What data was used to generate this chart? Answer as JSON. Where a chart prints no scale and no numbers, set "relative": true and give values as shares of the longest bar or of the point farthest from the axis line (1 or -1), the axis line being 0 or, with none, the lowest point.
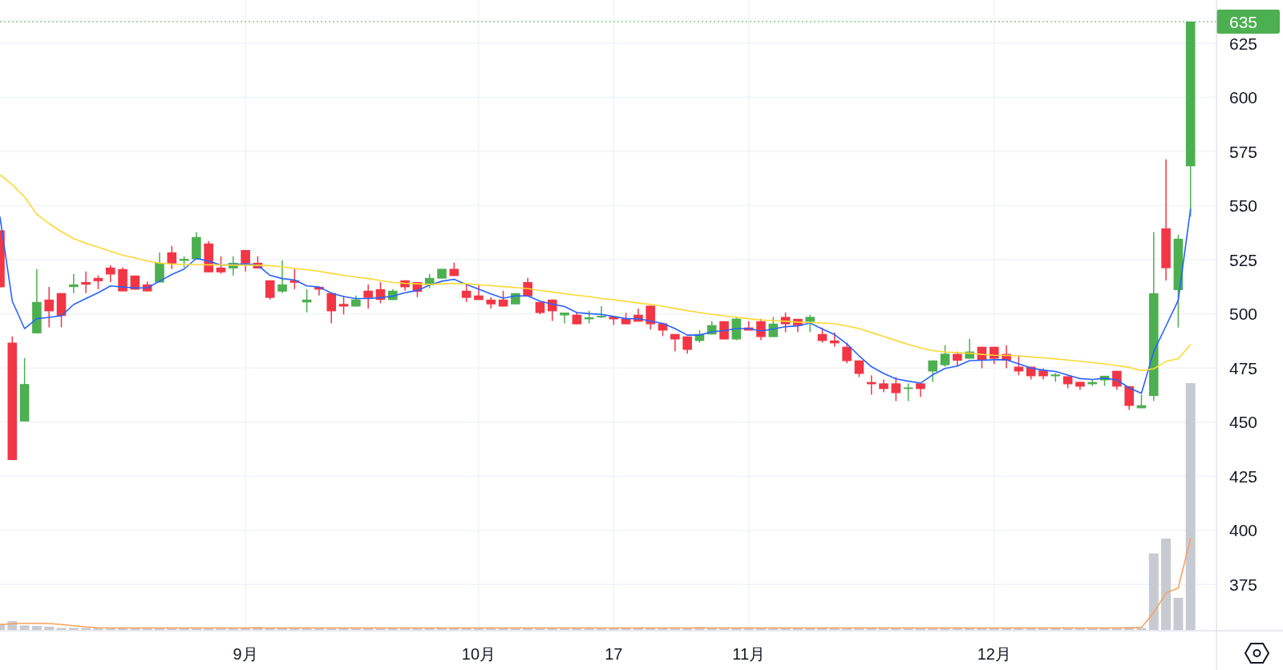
{
  "chart_data": [
    {
      "type": "candlestick",
      "categories": [
        null,
        null,
        null,
        null,
        null,
        null,
        null,
        null,
        null,
        null,
        null,
        null,
        null,
        null,
        null,
        null,
        null,
        null,
        null,
        null,
        "9月",
        null,
        null,
        null,
        null,
        null,
        null,
        null,
        null,
        null,
        null,
        null,
        null,
        null,
        null,
        null,
        null,
        null,
        null,
        "10月",
        null,
        null,
        null,
        null,
        null,
        null,
        null,
        null,
        null,
        null,
        "17",
        null,
        null,
        null,
        null,
        null,
        null,
        null,
        null,
        null,
        null,
        "11月",
        null,
        null,
        null,
        null,
        null,
        null,
        null,
        null,
        null,
        null,
        null,
        null,
        null,
        null,
        null,
        null,
        null,
        null,
        null,
        "12月",
        null,
        null,
        null,
        null,
        null,
        null,
        null,
        null,
        null,
        null,
        null,
        null,
        null,
        null,
        null,
        null
      ],
      "ohlc": [
        [
          538.6,
          538.6,
          512.3,
          512.3
        ],
        [
          486.7,
          489.6,
          432.5,
          432.5
        ],
        [
          450.3,
          479.6,
          450.3,
          467.6
        ],
        [
          491.0,
          520.7,
          491.0,
          505.5
        ],
        [
          506.6,
          512.5,
          493.8,
          501.2
        ],
        [
          509.6,
          509.6,
          493.8,
          499.1
        ],
        [
          512.4,
          518.5,
          509.6,
          513.6
        ],
        [
          514.7,
          519.6,
          509.6,
          513.5
        ],
        [
          516.6,
          517.7,
          511.4,
          515.1
        ],
        [
          521.4,
          522.5,
          514.7,
          518.2
        ],
        [
          520.7,
          521.4,
          510.4,
          510.4
        ],
        [
          517.7,
          517.7,
          511.2,
          511.2
        ],
        [
          513.6,
          514.9,
          510.4,
          510.4
        ],
        [
          514.5,
          528.4,
          514.5,
          523.6
        ],
        [
          528.4,
          531.4,
          520.7,
          523.3
        ],
        [
          524.5,
          526.6,
          521.4,
          525.4
        ],
        [
          525.2,
          537.7,
          525.2,
          535.5
        ],
        [
          532.5,
          533.6,
          519.2,
          519.2
        ],
        [
          521.4,
          526.6,
          518.5,
          519.2
        ],
        [
          521.0,
          526.6,
          517.7,
          523.6
        ],
        [
          529.5,
          529.5,
          519.6,
          523.3
        ],
        [
          523.6,
          526.6,
          521.0,
          521.0
        ],
        [
          515.5,
          515.5,
          506.6,
          507.4
        ],
        [
          510.3,
          524.8,
          509.6,
          513.6
        ],
        [
          515.5,
          520.7,
          511.4,
          514.4
        ],
        [
          505.3,
          511.4,
          500.7,
          506.6
        ],
        [
          512.5,
          512.5,
          508.5,
          511.2
        ],
        [
          509.6,
          509.6,
          495.6,
          501.2
        ],
        [
          504.6,
          508.3,
          499.7,
          503.4
        ],
        [
          503.4,
          508.5,
          503.4,
          506.7
        ],
        [
          510.7,
          513.6,
          502.5,
          507.4
        ],
        [
          511.4,
          514.7,
          504.9,
          506.5
        ],
        [
          506.4,
          511.4,
          506.4,
          510.7
        ],
        [
          515.5,
          515.5,
          510.7,
          512.3
        ],
        [
          514.7,
          514.7,
          507.7,
          510.2
        ],
        [
          513.3,
          518.5,
          511.8,
          516.6
        ],
        [
          516.3,
          520.8,
          516.3,
          520.8
        ],
        [
          520.8,
          523.7,
          517.5,
          517.5
        ],
        [
          510.7,
          513.6,
          505.5,
          507.4
        ],
        [
          508.5,
          513.6,
          506.4,
          506.4
        ],
        [
          506.6,
          507.7,
          502.5,
          504.4
        ],
        [
          506.6,
          510.7,
          503.4,
          503.4
        ],
        [
          504.4,
          509.6,
          504.4,
          509.6
        ],
        [
          514.7,
          516.6,
          508.1,
          508.1
        ],
        [
          505.5,
          505.5,
          499.8,
          500.4
        ],
        [
          506.6,
          506.6,
          496.7,
          501.2
        ],
        [
          499.3,
          500.6,
          495.6,
          500.6
        ],
        [
          499.6,
          501.0,
          495.2,
          495.2
        ],
        [
          497.5,
          501.4,
          495.6,
          498.4
        ],
        [
          498.4,
          503.6,
          498.0,
          499.1
        ],
        [
          498.7,
          498.7,
          494.9,
          497.5
        ],
        [
          497.8,
          500.6,
          495.2,
          495.2
        ],
        [
          499.6,
          502.5,
          496.4,
          496.4
        ],
        [
          503.8,
          503.8,
          492.7,
          495.2
        ],
        [
          495.6,
          495.6,
          489.7,
          492.3
        ],
        [
          490.7,
          490.7,
          482.7,
          488.2
        ],
        [
          489.6,
          489.6,
          481.6,
          483.4
        ],
        [
          487.5,
          492.5,
          486.7,
          490.7
        ],
        [
          490.5,
          496.6,
          490.5,
          494.8
        ],
        [
          496.6,
          496.6,
          488.2,
          488.2
        ],
        [
          488.2,
          498.6,
          487.8,
          497.8
        ],
        [
          493.7,
          496.6,
          492.3,
          492.3
        ],
        [
          496.6,
          497.7,
          487.8,
          489.3
        ],
        [
          489.3,
          498.6,
          489.3,
          495.5
        ],
        [
          498.6,
          500.7,
          491.5,
          495.2
        ],
        [
          497.7,
          497.7,
          491.5,
          494.5
        ],
        [
          496.4,
          499.6,
          491.5,
          498.6
        ],
        [
          490.7,
          493.7,
          486.7,
          487.5
        ],
        [
          487.7,
          491.4,
          484.9,
          486.4
        ],
        [
          484.8,
          486.7,
          477.2,
          478.2
        ],
        [
          478.5,
          478.5,
          470.8,
          472.3
        ],
        [
          468.5,
          471.6,
          462.7,
          467.5
        ],
        [
          467.9,
          469.7,
          463.8,
          465.3
        ],
        [
          467.9,
          470.8,
          459.7,
          463.4
        ],
        [
          465.3,
          467.9,
          459.7,
          466.0
        ],
        [
          467.9,
          467.9,
          461.6,
          465.3
        ],
        [
          473.4,
          478.5,
          468.6,
          478.5
        ],
        [
          476.3,
          485.6,
          475.6,
          481.6
        ],
        [
          481.5,
          482.6,
          475.6,
          478.4
        ],
        [
          479.3,
          488.5,
          479.3,
          482.6
        ],
        [
          484.8,
          484.8,
          474.9,
          478.4
        ],
        [
          484.8,
          484.8,
          476.7,
          479.3
        ],
        [
          481.5,
          485.5,
          474.9,
          478.4
        ],
        [
          475.6,
          480.8,
          471.6,
          473.4
        ],
        [
          475.6,
          475.6,
          469.7,
          471.2
        ],
        [
          473.9,
          474.9,
          469.7,
          471.2
        ],
        [
          471.2,
          472.7,
          468.6,
          472.0
        ],
        [
          471.2,
          471.2,
          465.6,
          467.5
        ],
        [
          468.6,
          468.6,
          464.9,
          466.4
        ],
        [
          467.5,
          469.7,
          466.7,
          468.5
        ],
        [
          469.3,
          471.4,
          466.7,
          471.4
        ],
        [
          473.7,
          473.7,
          464.9,
          466.4
        ],
        [
          466.6,
          466.6,
          455.6,
          457.5
        ],
        [
          456.4,
          462.7,
          456.4,
          457.8
        ],
        [
          462.1,
          537.7,
          459.8,
          509.5
        ],
        [
          539.5,
          571.4,
          515.4,
          521.1
        ],
        [
          511.0,
          536.5,
          493.7,
          534.7
        ],
        [
          568.2,
          635,
          544.9,
          635
        ]
      ],
      "series": [
        {
          "type": "line",
          "color": "#2962ff",
          "values": [
            544.7,
            505.9,
            493.2,
            497.8,
            498.4,
            499.1,
            504.3,
            507.1,
            509.8,
            512.9,
            512.4,
            512.0,
            512.0,
            515.1,
            518.2,
            520.7,
            525.6,
            524.4,
            522.5,
            522.8,
            523.1,
            522.5,
            517.8,
            516.3,
            515.7,
            512.9,
            512.4,
            509.6,
            508.0,
            507.1,
            507.1,
            507.5,
            508.2,
            509.8,
            510.8,
            513.3,
            515.1,
            516.0,
            513.6,
            511.4,
            509.2,
            507.3,
            508.3,
            508.3,
            505.9,
            504.5,
            503.4,
            500.6,
            500.1,
            499.8,
            498.8,
            497.8,
            497.8,
            496.6,
            495.6,
            493.2,
            490.2,
            490.2,
            491.7,
            492.3,
            493.2,
            493.2,
            492.1,
            493.0,
            494.1,
            494.4,
            495.8,
            493.0,
            490.4,
            486.1,
            480.6,
            475.6,
            472.5,
            470.0,
            468.9,
            468.0,
            471.9,
            474.8,
            475.9,
            478.4,
            478.6,
            478.8,
            478.8,
            476.9,
            475.0,
            474.0,
            473.4,
            471.7,
            470.1,
            469.7,
            470.3,
            469.5,
            465.8,
            463.3,
            482.6,
            494.4,
            506.3,
            548.4
          ]
        },
        {
          "type": "line",
          "color": "#fdd835",
          "values": [
            564.2,
            559.7,
            554.0,
            546.0,
            541.7,
            538.0,
            534.8,
            532.6,
            530.9,
            528.9,
            527.1,
            525.9,
            524.4,
            523.5,
            523.0,
            522.8,
            522.8,
            522.7,
            522.6,
            522.6,
            522.5,
            522.4,
            522.3,
            521.7,
            521.0,
            520.4,
            519.7,
            518.7,
            517.8,
            517.0,
            516.3,
            515.4,
            514.5,
            514.1,
            513.9,
            513.6,
            513.9,
            514.1,
            513.9,
            513.5,
            513.0,
            512.6,
            512.2,
            511.7,
            510.8,
            510.2,
            509.3,
            508.6,
            508.0,
            507.1,
            506.5,
            505.8,
            505.0,
            504.4,
            503.6,
            502.5,
            501.5,
            500.6,
            499.8,
            499.1,
            498.4,
            497.8,
            497.2,
            496.9,
            496.6,
            496.2,
            496.0,
            495.8,
            495.4,
            494.4,
            493.2,
            491.4,
            489.6,
            487.7,
            485.9,
            484.3,
            483.0,
            482.4,
            482.1,
            481.8,
            481.3,
            480.9,
            480.8,
            480.6,
            480.1,
            479.7,
            479.2,
            478.7,
            478.1,
            477.5,
            476.9,
            476.1,
            475.3,
            473.8,
            474.6,
            478.0,
            479.3,
            485.8
          ]
        }
      ],
      "ylim": [
        354,
        645
      ],
      "yticks": [
        375,
        400,
        425,
        450,
        475,
        500,
        525,
        550,
        575,
        600,
        625
      ],
      "grid": true,
      "ref_lines": [
        {
          "axis": "y",
          "value": 635,
          "label": "635",
          "color": "#4caf50",
          "line_style": "dotted"
        }
      ]
    },
    {
      "type": "bar",
      "relative": true,
      "categories": [
        null,
        null,
        null,
        null,
        null,
        null,
        null,
        null,
        null,
        null,
        null,
        null,
        null,
        null,
        null,
        null,
        null,
        null,
        null,
        null,
        null,
        null,
        null,
        null,
        null,
        null,
        null,
        null,
        null,
        null,
        null,
        null,
        null,
        null,
        null,
        null,
        null,
        null,
        null,
        null,
        null,
        null,
        null,
        null,
        null,
        null,
        null,
        null,
        null,
        null,
        null,
        null,
        null,
        null,
        null,
        null,
        null,
        null,
        null,
        null,
        null,
        null,
        null,
        null,
        null,
        null,
        null,
        null,
        null,
        null,
        null,
        null,
        null,
        null,
        null,
        null,
        null,
        null,
        null,
        null,
        null,
        null,
        null,
        null,
        null,
        null,
        null,
        null,
        null,
        null,
        null,
        null,
        null,
        null,
        null,
        null,
        null,
        null
      ],
      "series": [
        {
          "type": "bar",
          "color": "#c8cad2",
          "values": [
            0.025,
            0.035,
            0.018,
            0.016,
            0.013,
            0.008,
            0.008,
            0.008,
            0.008,
            0.008,
            0.008,
            0.008,
            0.008,
            0.008,
            0.008,
            0.008,
            0.008,
            0.008,
            0.008,
            0.008,
            0.008,
            0.012,
            0.008,
            0.008,
            0.008,
            0.008,
            0.008,
            0.008,
            0.008,
            0.008,
            0.008,
            0.008,
            0.008,
            0.008,
            0.008,
            0.008,
            0.008,
            0.008,
            0.008,
            0.008,
            0.008,
            0.008,
            0.008,
            0.008,
            0.008,
            0.008,
            0.008,
            0.008,
            0.008,
            0.008,
            0.008,
            0.008,
            0.008,
            0.008,
            0.008,
            0.008,
            0.008,
            0.012,
            0.008,
            0.008,
            0.008,
            0.008,
            0.008,
            0.008,
            0.008,
            0.008,
            0.008,
            0.008,
            0.008,
            0.008,
            0.008,
            0.008,
            0.008,
            0.008,
            0.008,
            0.008,
            0.01,
            0.01,
            0.01,
            0.008,
            0.008,
            0.008,
            0.008,
            0.008,
            0.008,
            0.008,
            0.008,
            0.008,
            0.008,
            0.008,
            0.008,
            0.008,
            0.012,
            0.008,
            0.31,
            0.37,
            0.13,
            1
          ]
        },
        {
          "type": "line",
          "color": "#f7a25c",
          "values": [
            0.022,
            0.025,
            0.027,
            0.027,
            0.026,
            0.022,
            0.017,
            0.012,
            0.009,
            0.008,
            0.008,
            0.008,
            0.008,
            0.008,
            0.008,
            0.008,
            0.008,
            0.008,
            0.008,
            0.008,
            0.008,
            0.008,
            0.008,
            0.008,
            0.008,
            0.008,
            0.008,
            0.008,
            0.008,
            0.008,
            0.008,
            0.008,
            0.008,
            0.008,
            0.008,
            0.008,
            0.008,
            0.008,
            0.008,
            0.008,
            0.008,
            0.008,
            0.008,
            0.008,
            0.008,
            0.008,
            0.008,
            0.008,
            0.008,
            0.008,
            0.008,
            0.008,
            0.008,
            0.008,
            0.008,
            0.008,
            0.008,
            0.008,
            0.008,
            0.008,
            0.008,
            0.008,
            0.008,
            0.008,
            0.008,
            0.008,
            0.008,
            0.008,
            0.008,
            0.008,
            0.008,
            0.008,
            0.008,
            0.008,
            0.008,
            0.008,
            0.008,
            0.008,
            0.008,
            0.008,
            0.008,
            0.008,
            0.008,
            0.008,
            0.008,
            0.008,
            0.008,
            0.008,
            0.008,
            0.008,
            0.008,
            0.008,
            0.008,
            0.01,
            0.07,
            0.15,
            0.17,
            0.37
          ]
        }
      ]
    }
  ]
}
